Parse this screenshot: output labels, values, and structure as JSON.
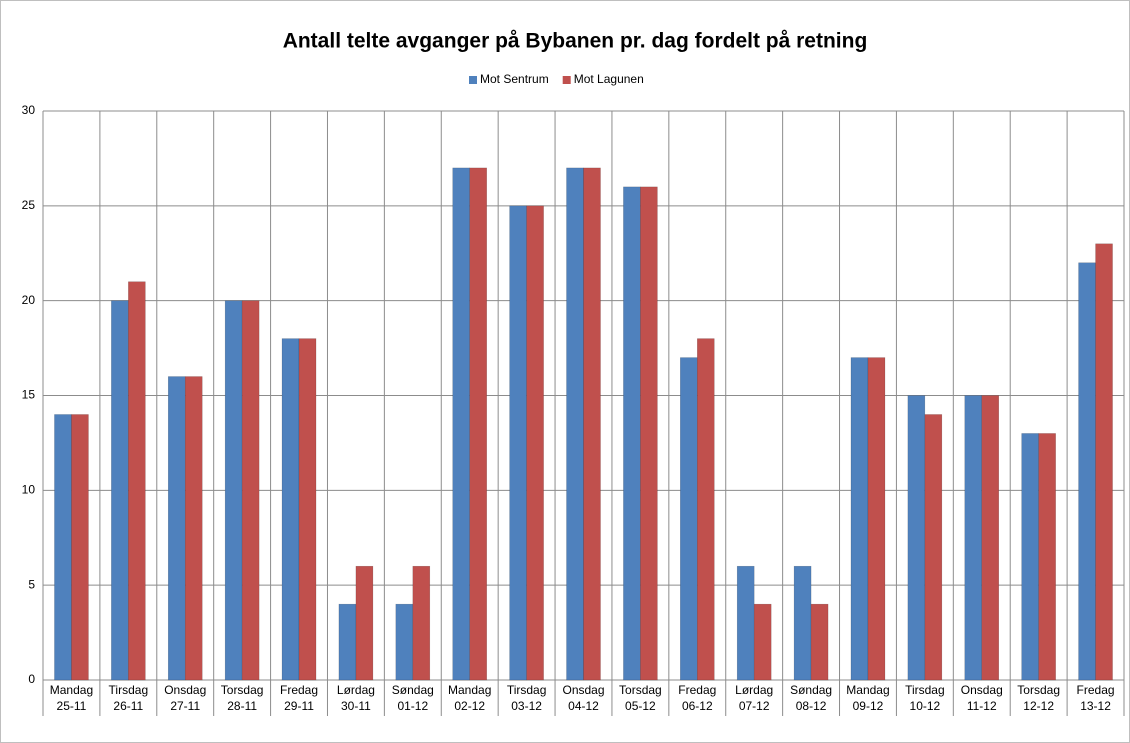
{
  "chart_data": {
    "type": "bar",
    "title": "Antall telte avganger på Bybanen pr. dag fordelt på retning",
    "categories": [
      [
        "Mandag",
        "25-11"
      ],
      [
        "Tirsdag",
        "26-11"
      ],
      [
        "Onsdag",
        "27-11"
      ],
      [
        "Torsdag",
        "28-11"
      ],
      [
        "Fredag",
        "29-11"
      ],
      [
        "Lørdag",
        "30-11"
      ],
      [
        "Søndag",
        "01-12"
      ],
      [
        "Mandag",
        "02-12"
      ],
      [
        "Tirsdag",
        "03-12"
      ],
      [
        "Onsdag",
        "04-12"
      ],
      [
        "Torsdag",
        "05-12"
      ],
      [
        "Fredag",
        "06-12"
      ],
      [
        "Lørdag",
        "07-12"
      ],
      [
        "Søndag",
        "08-12"
      ],
      [
        "Mandag",
        "09-12"
      ],
      [
        "Tirsdag",
        "10-12"
      ],
      [
        "Onsdag",
        "11-12"
      ],
      [
        "Torsdag",
        "12-12"
      ],
      [
        "Fredag",
        "13-12"
      ]
    ],
    "series": [
      {
        "name": "Mot Sentrum",
        "color": "#4f81bd",
        "values": [
          14,
          20,
          16,
          20,
          18,
          4,
          4,
          27,
          25,
          27,
          26,
          17,
          6,
          6,
          17,
          15,
          15,
          13,
          22
        ]
      },
      {
        "name": "Mot Lagunen",
        "color": "#c0504d",
        "values": [
          14,
          21,
          16,
          20,
          18,
          6,
          6,
          27,
          25,
          27,
          26,
          18,
          4,
          4,
          17,
          14,
          15,
          13,
          23
        ]
      }
    ],
    "ylim": [
      0,
      30
    ],
    "yticks": [
      0,
      5,
      10,
      15,
      20,
      25,
      30
    ],
    "grid": true,
    "legend": "top"
  }
}
